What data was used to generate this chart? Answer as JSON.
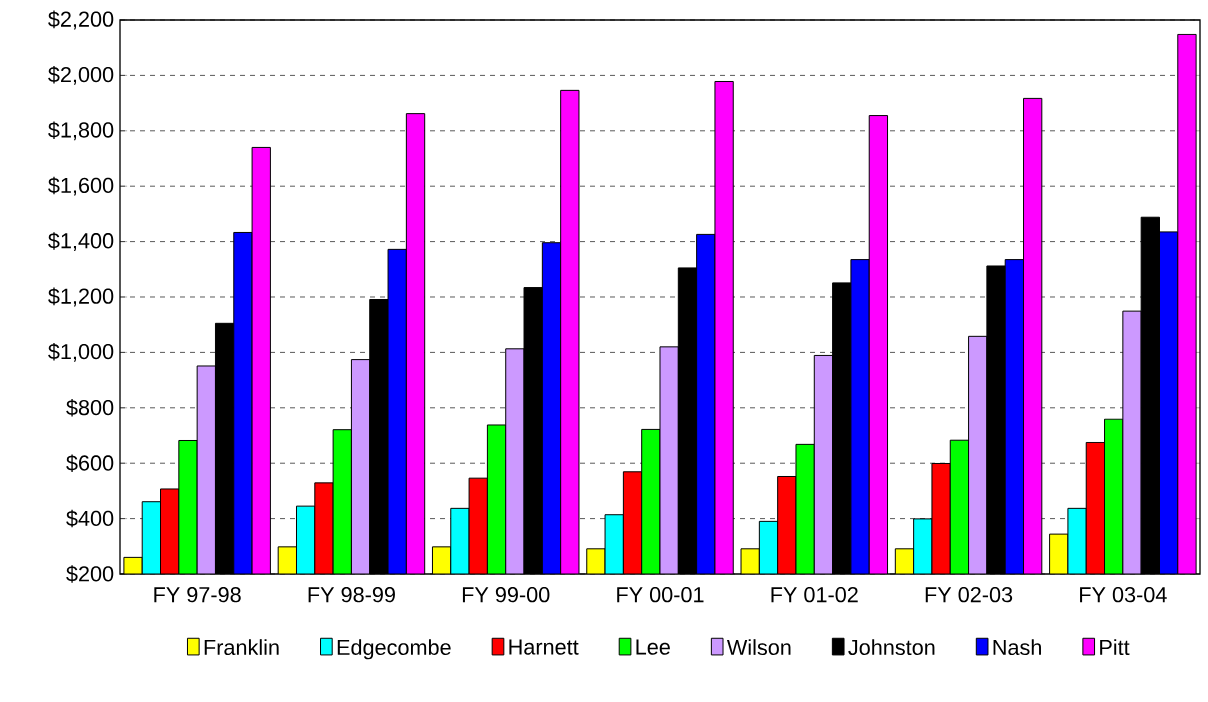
{
  "chart_data": {
    "type": "bar",
    "categories": [
      "FY 97-98",
      "FY 98-99",
      "FY 99-00",
      "FY 00-01",
      "FY 01-02",
      "FY 02-03",
      "FY 03-04"
    ],
    "series": [
      {
        "name": "Franklin",
        "color": "#ffff00",
        "values": [
          260,
          298,
          298,
          291,
          291,
          291,
          344
        ]
      },
      {
        "name": "Edgecombe",
        "color": "#00ffff",
        "values": [
          461,
          445,
          437,
          414,
          390,
          399,
          437
        ]
      },
      {
        "name": "Harnett",
        "color": "#ff0000",
        "values": [
          507,
          529,
          546,
          569,
          552,
          599,
          675
        ]
      },
      {
        "name": "Lee",
        "color": "#00ff00",
        "values": [
          682,
          721,
          738,
          722,
          668,
          683,
          759
        ]
      },
      {
        "name": "Wilson",
        "color": "#cc99ff",
        "values": [
          951,
          974,
          1013,
          1020,
          989,
          1058,
          1149
        ]
      },
      {
        "name": "Johnston",
        "color": "#000000",
        "values": [
          1105,
          1191,
          1234,
          1305,
          1251,
          1312,
          1488
        ]
      },
      {
        "name": "Nash",
        "color": "#0000ff",
        "values": [
          1433,
          1372,
          1396,
          1426,
          1335,
          1335,
          1435
        ]
      },
      {
        "name": "Pitt",
        "color": "#ff00ff",
        "values": [
          1740,
          1862,
          1946,
          1978,
          1855,
          1917,
          2148
        ]
      }
    ],
    "ylim": [
      200,
      2200
    ],
    "yticks": [
      {
        "value": 200,
        "label": "$200"
      },
      {
        "value": 400,
        "label": "$400"
      },
      {
        "value": 600,
        "label": "$600"
      },
      {
        "value": 800,
        "label": "$800"
      },
      {
        "value": 1000,
        "label": "$1,000"
      },
      {
        "value": 1200,
        "label": "$1,200"
      },
      {
        "value": 1400,
        "label": "$1,400"
      },
      {
        "value": 1600,
        "label": "$1,600"
      },
      {
        "value": 1800,
        "label": "$1,800"
      },
      {
        "value": 2000,
        "label": "$2,000"
      },
      {
        "value": 2200,
        "label": "$2,200"
      }
    ],
    "grid": "y",
    "legend": "bottom"
  }
}
